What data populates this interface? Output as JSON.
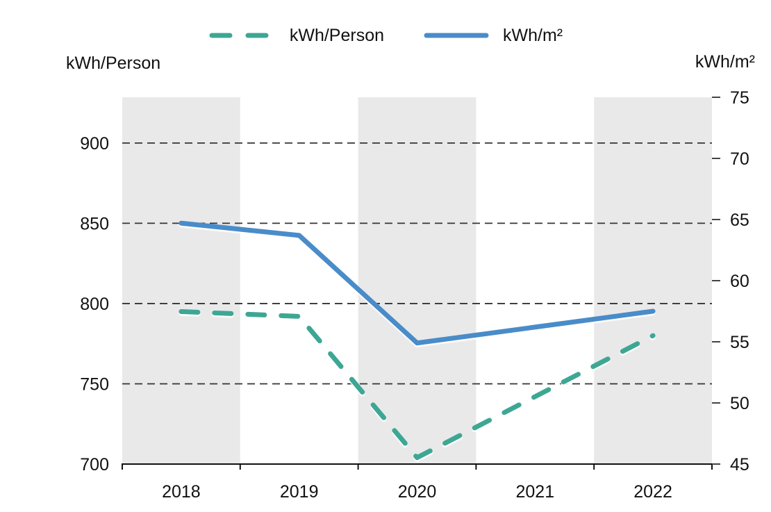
{
  "page": {
    "background": "#ffffff"
  },
  "chart_data": {
    "type": "line",
    "title": "",
    "categories": [
      "2018",
      "2019",
      "2020",
      "2021",
      "2022"
    ],
    "shaded_categories": [
      "2018",
      "2020",
      "2022"
    ],
    "band_color": "#e9e9e9",
    "grid": "horizontal-dashed",
    "legend_position": "top-center",
    "left_axis": {
      "title": "kWh/Person",
      "ticks": [
        900,
        850,
        800,
        750,
        700
      ],
      "range": [
        700,
        928.5
      ]
    },
    "right_axis": {
      "title": "kWh/m²",
      "ticks": [
        75,
        70,
        65,
        60,
        55,
        50,
        45
      ],
      "range": [
        45,
        75
      ]
    },
    "series": [
      {
        "name": "kWh/Person",
        "axis": "left",
        "line_style": "dashed",
        "color": "#3ca794",
        "values": [
          795,
          792,
          704,
          742,
          780
        ]
      },
      {
        "name": "kWh/m²",
        "axis": "right",
        "line_style": "solid",
        "color": "#4a8cc9",
        "values": [
          64.7,
          63.7,
          54.9,
          56.2,
          57.5
        ]
      }
    ]
  }
}
